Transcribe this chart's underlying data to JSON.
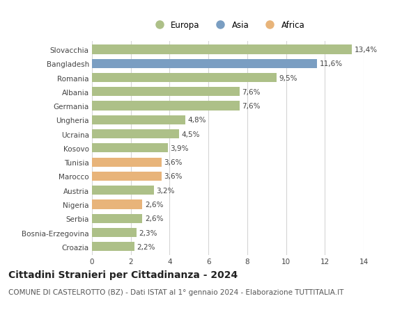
{
  "categories": [
    "Croazia",
    "Bosnia-Erzegovina",
    "Serbia",
    "Nigeria",
    "Austria",
    "Marocco",
    "Tunisia",
    "Kosovo",
    "Ucraina",
    "Ungheria",
    "Germania",
    "Albania",
    "Romania",
    "Bangladesh",
    "Slovacchia"
  ],
  "values": [
    2.2,
    2.3,
    2.6,
    2.6,
    3.2,
    3.6,
    3.6,
    3.9,
    4.5,
    4.8,
    7.6,
    7.6,
    9.5,
    11.6,
    13.4
  ],
  "labels": [
    "2,2%",
    "2,3%",
    "2,6%",
    "2,6%",
    "3,2%",
    "3,6%",
    "3,6%",
    "3,9%",
    "4,5%",
    "4,8%",
    "7,6%",
    "7,6%",
    "9,5%",
    "11,6%",
    "13,4%"
  ],
  "continents": [
    "Europa",
    "Europa",
    "Europa",
    "Africa",
    "Europa",
    "Africa",
    "Africa",
    "Europa",
    "Europa",
    "Europa",
    "Europa",
    "Europa",
    "Europa",
    "Asia",
    "Europa"
  ],
  "colors": {
    "Europa": "#adc088",
    "Asia": "#7a9ec2",
    "Africa": "#e8b47a"
  },
  "legend_items": [
    "Europa",
    "Asia",
    "Africa"
  ],
  "legend_colors": [
    "#adc088",
    "#7a9ec2",
    "#e8b47a"
  ],
  "title": "Cittadini Stranieri per Cittadinanza - 2024",
  "subtitle": "COMUNE DI CASTELROTTO (BZ) - Dati ISTAT al 1° gennaio 2024 - Elaborazione TUTTITALIA.IT",
  "xlim": [
    0,
    14
  ],
  "xticks": [
    0,
    2,
    4,
    6,
    8,
    10,
    12,
    14
  ],
  "background_color": "#ffffff",
  "grid_color": "#d5d5d5",
  "bar_height": 0.65,
  "label_fontsize": 7.5,
  "title_fontsize": 10,
  "subtitle_fontsize": 7.5,
  "tick_fontsize": 7.5,
  "legend_fontsize": 8.5,
  "ytick_fontsize": 7.5
}
